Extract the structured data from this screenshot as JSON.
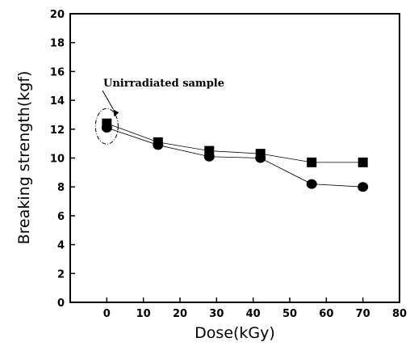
{
  "chart_data": {
    "type": "line",
    "title": "",
    "xlabel": "Dose(kGy)",
    "ylabel": "Breaking strength(kgf)",
    "xlim": [
      -10,
      80
    ],
    "ylim": [
      0,
      20
    ],
    "x_ticks": [
      "0",
      "10",
      "20",
      "30",
      "40",
      "50",
      "60",
      "70",
      "80"
    ],
    "y_ticks": [
      "0",
      "2",
      "4",
      "6",
      "8",
      "10",
      "12",
      "14",
      "16",
      "18",
      "20"
    ],
    "grid": false,
    "x": [
      0,
      14,
      28,
      42,
      56,
      70
    ],
    "series": [
      {
        "marker": "square",
        "values": [
          12.4,
          11.1,
          10.5,
          10.3,
          9.7,
          9.7
        ]
      },
      {
        "marker": "circle",
        "values": [
          12.1,
          10.9,
          10.1,
          10.0,
          8.2,
          8.0
        ]
      }
    ],
    "annotation": {
      "text": "Unirradiated sample",
      "x": 0,
      "y": 12.2
    }
  }
}
